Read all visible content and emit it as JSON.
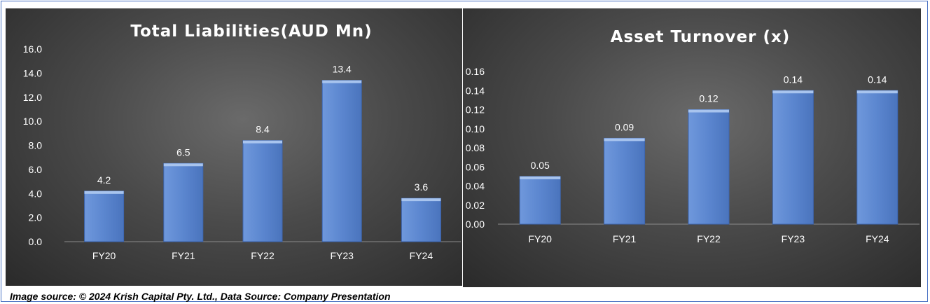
{
  "chart_data": [
    {
      "type": "bar",
      "title": "Total Liabilities(AUD Mn)",
      "categories": [
        "FY20",
        "FY21",
        "FY22",
        "FY23",
        "FY24"
      ],
      "values": [
        4.2,
        6.5,
        8.4,
        13.4,
        3.6
      ],
      "data_labels": [
        "4.2",
        "6.5",
        "8.4",
        "13.4",
        "3.6"
      ],
      "yticks": [
        "0.0",
        "2.0",
        "4.0",
        "6.0",
        "8.0",
        "10.0",
        "12.0",
        "14.0",
        "16.0"
      ],
      "ylim": [
        0,
        16
      ],
      "grid": false,
      "legend": "none",
      "bar_color": "#5b86cf"
    },
    {
      "type": "bar",
      "title": "Asset Turnover (x)",
      "categories": [
        "FY20",
        "FY21",
        "FY22",
        "FY23",
        "FY24"
      ],
      "values": [
        0.05,
        0.09,
        0.12,
        0.14,
        0.14
      ],
      "data_labels": [
        "0.05",
        "0.09",
        "0.12",
        "0.14",
        "0.14"
      ],
      "yticks": [
        "0.00",
        "0.02",
        "0.04",
        "0.06",
        "0.08",
        "0.10",
        "0.12",
        "0.14",
        "0.16"
      ],
      "ylim": [
        0,
        0.16
      ],
      "grid": false,
      "legend": "none",
      "bar_color": "#5b86cf"
    }
  ],
  "footer": {
    "source": "Image source: © 2024 Krish Capital Pty. Ltd., Data Source: Company Presentation"
  }
}
